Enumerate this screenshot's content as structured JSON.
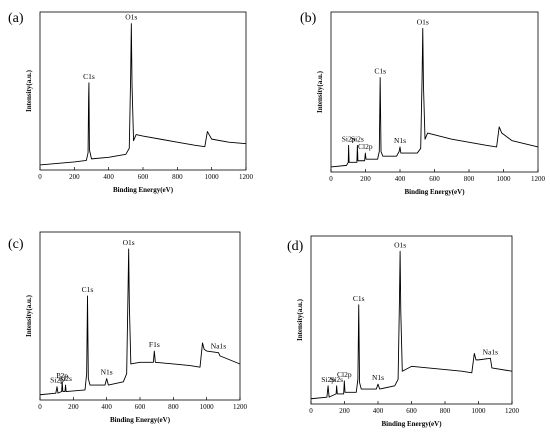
{
  "chart_data": [
    {
      "type": "line",
      "panel_label": "(a)",
      "xlabel": "Binding Energy(eV)",
      "ylabel": "Intensity(a.u.)",
      "xlim": [
        0,
        1200
      ],
      "xticks": [
        0,
        200,
        400,
        600,
        800,
        1000,
        1200
      ],
      "x_labels": [
        "0",
        "200",
        "400",
        "600",
        "800",
        "1000",
        "1200"
      ],
      "ylim": [
        0,
        1
      ],
      "y_tick_labels_shown": false,
      "grid": false,
      "legend": "none",
      "annotations": [
        {
          "text": "C1s",
          "x": 285
        },
        {
          "text": "O1s",
          "x": 532
        }
      ],
      "series": [
        {
          "points": [
            [
              0,
              0.02
            ],
            [
              100,
              0.03
            ],
            [
              200,
              0.04
            ],
            [
              270,
              0.05
            ],
            [
              280,
              0.1
            ],
            [
              283,
              0.45
            ],
            [
              285,
              0.56
            ],
            [
              288,
              0.12
            ],
            [
              300,
              0.06
            ],
            [
              400,
              0.07
            ],
            [
              500,
              0.09
            ],
            [
              520,
              0.13
            ],
            [
              528,
              0.6
            ],
            [
              532,
              0.95
            ],
            [
              536,
              0.55
            ],
            [
              545,
              0.18
            ],
            [
              560,
              0.22
            ],
            [
              600,
              0.21
            ],
            [
              700,
              0.19
            ],
            [
              800,
              0.17
            ],
            [
              900,
              0.15
            ],
            [
              960,
              0.14
            ],
            [
              975,
              0.24
            ],
            [
              985,
              0.22
            ],
            [
              1000,
              0.19
            ],
            [
              1100,
              0.17
            ],
            [
              1200,
              0.16
            ]
          ]
        }
      ]
    },
    {
      "type": "line",
      "panel_label": "(b)",
      "xlabel": "Binding Energy(eV)",
      "ylabel": "Intensity(a.u.)",
      "xlim": [
        0,
        1200
      ],
      "xticks": [
        0,
        200,
        400,
        600,
        800,
        1000,
        1200
      ],
      "x_labels": [
        "0",
        "200",
        "400",
        "600",
        "800",
        "1000",
        "1200"
      ],
      "ylim": [
        0,
        1
      ],
      "y_tick_labels_shown": false,
      "grid": false,
      "legend": "none",
      "annotations": [
        {
          "text": "Si2p",
          "x": 102
        },
        {
          "text": "Si2s",
          "x": 153
        },
        {
          "text": "Cl2p",
          "x": 199
        },
        {
          "text": "C1s",
          "x": 285
        },
        {
          "text": "N1s",
          "x": 400
        },
        {
          "text": "O1s",
          "x": 532
        }
      ],
      "series": [
        {
          "points": [
            [
              0,
              0.02
            ],
            [
              90,
              0.03
            ],
            [
              100,
              0.05
            ],
            [
              102,
              0.16
            ],
            [
              105,
              0.05
            ],
            [
              150,
              0.05
            ],
            [
              153,
              0.16
            ],
            [
              156,
              0.06
            ],
            [
              195,
              0.06
            ],
            [
              199,
              0.11
            ],
            [
              203,
              0.07
            ],
            [
              270,
              0.07
            ],
            [
              280,
              0.12
            ],
            [
              285,
              0.6
            ],
            [
              290,
              0.12
            ],
            [
              300,
              0.09
            ],
            [
              380,
              0.09
            ],
            [
              395,
              0.12
            ],
            [
              400,
              0.15
            ],
            [
              405,
              0.11
            ],
            [
              500,
              0.11
            ],
            [
              520,
              0.14
            ],
            [
              528,
              0.6
            ],
            [
              532,
              0.92
            ],
            [
              536,
              0.55
            ],
            [
              545,
              0.2
            ],
            [
              560,
              0.24
            ],
            [
              700,
              0.2
            ],
            [
              900,
              0.16
            ],
            [
              960,
              0.15
            ],
            [
              975,
              0.28
            ],
            [
              990,
              0.24
            ],
            [
              1050,
              0.19
            ],
            [
              1200,
              0.15
            ]
          ]
        }
      ]
    },
    {
      "type": "line",
      "panel_label": "(c)",
      "xlabel": "Binding Energy(eV)",
      "ylabel": "Intensity(a.u.)",
      "xlim": [
        0,
        1200
      ],
      "xticks": [
        0,
        200,
        400,
        600,
        800,
        1000,
        1200
      ],
      "x_labels": [
        "0",
        "200",
        "400",
        "600",
        "800",
        "1000",
        "1200"
      ],
      "ylim": [
        0,
        1
      ],
      "y_tick_labels_shown": false,
      "grid": false,
      "legend": "none",
      "annotations": [
        {
          "text": "Si2p",
          "x": 102
        },
        {
          "text": "P2p",
          "x": 133
        },
        {
          "text": "Si2s",
          "x": 153
        },
        {
          "text": "C1s",
          "x": 285
        },
        {
          "text": "N1s",
          "x": 400
        },
        {
          "text": "O1s",
          "x": 532
        },
        {
          "text": "F1s",
          "x": 686
        },
        {
          "text": "Na1s",
          "x": 1071
        }
      ],
      "series": [
        {
          "points": [
            [
              0,
              0.02
            ],
            [
              95,
              0.03
            ],
            [
              102,
              0.07
            ],
            [
              108,
              0.03
            ],
            [
              130,
              0.04
            ],
            [
              133,
              0.1
            ],
            [
              137,
              0.04
            ],
            [
              150,
              0.04
            ],
            [
              153,
              0.08
            ],
            [
              157,
              0.04
            ],
            [
              270,
              0.05
            ],
            [
              280,
              0.15
            ],
            [
              285,
              0.63
            ],
            [
              290,
              0.12
            ],
            [
              300,
              0.08
            ],
            [
              390,
              0.08
            ],
            [
              400,
              0.12
            ],
            [
              410,
              0.08
            ],
            [
              500,
              0.1
            ],
            [
              520,
              0.15
            ],
            [
              528,
              0.65
            ],
            [
              532,
              0.92
            ],
            [
              536,
              0.58
            ],
            [
              545,
              0.21
            ],
            [
              600,
              0.22
            ],
            [
              680,
              0.22
            ],
            [
              686,
              0.29
            ],
            [
              692,
              0.22
            ],
            [
              800,
              0.21
            ],
            [
              900,
              0.2
            ],
            [
              960,
              0.19
            ],
            [
              975,
              0.34
            ],
            [
              985,
              0.3
            ],
            [
              1000,
              0.29
            ],
            [
              1071,
              0.28
            ],
            [
              1080,
              0.26
            ],
            [
              1200,
              0.21
            ]
          ]
        }
      ]
    },
    {
      "type": "line",
      "panel_label": "(d)",
      "xlabel": "Binding Energy(eV)",
      "ylabel": "Intensity(a.u.)",
      "xlim": [
        0,
        1200
      ],
      "xticks": [
        0,
        200,
        400,
        600,
        800,
        1000,
        1200
      ],
      "x_labels": [
        "0",
        "200",
        "400",
        "600",
        "800",
        "1000",
        "1200"
      ],
      "ylim": [
        0,
        1
      ],
      "y_tick_labels_shown": false,
      "grid": false,
      "legend": "none",
      "annotations": [
        {
          "text": "Si2p",
          "x": 102
        },
        {
          "text": "Si2s",
          "x": 153
        },
        {
          "text": "Cl2p",
          "x": 199
        },
        {
          "text": "C1s",
          "x": 285
        },
        {
          "text": "N1s",
          "x": 400
        },
        {
          "text": "O1s",
          "x": 532
        },
        {
          "text": "Na1s",
          "x": 1071
        }
      ],
      "series": [
        {
          "points": [
            [
              0,
              0.02
            ],
            [
              95,
              0.03
            ],
            [
              102,
              0.1
            ],
            [
              108,
              0.03
            ],
            [
              150,
              0.05
            ],
            [
              153,
              0.1
            ],
            [
              157,
              0.05
            ],
            [
              195,
              0.05
            ],
            [
              199,
              0.13
            ],
            [
              203,
              0.06
            ],
            [
              270,
              0.06
            ],
            [
              280,
              0.14
            ],
            [
              285,
              0.6
            ],
            [
              290,
              0.12
            ],
            [
              300,
              0.08
            ],
            [
              390,
              0.08
            ],
            [
              400,
              0.11
            ],
            [
              410,
              0.08
            ],
            [
              500,
              0.1
            ],
            [
              520,
              0.14
            ],
            [
              528,
              0.62
            ],
            [
              532,
              0.93
            ],
            [
              536,
              0.56
            ],
            [
              545,
              0.19
            ],
            [
              600,
              0.22
            ],
            [
              800,
              0.2
            ],
            [
              900,
              0.19
            ],
            [
              960,
              0.18
            ],
            [
              975,
              0.3
            ],
            [
              985,
              0.26
            ],
            [
              1000,
              0.26
            ],
            [
              1071,
              0.27
            ],
            [
              1080,
              0.21
            ],
            [
              1200,
              0.19
            ]
          ]
        }
      ]
    }
  ]
}
